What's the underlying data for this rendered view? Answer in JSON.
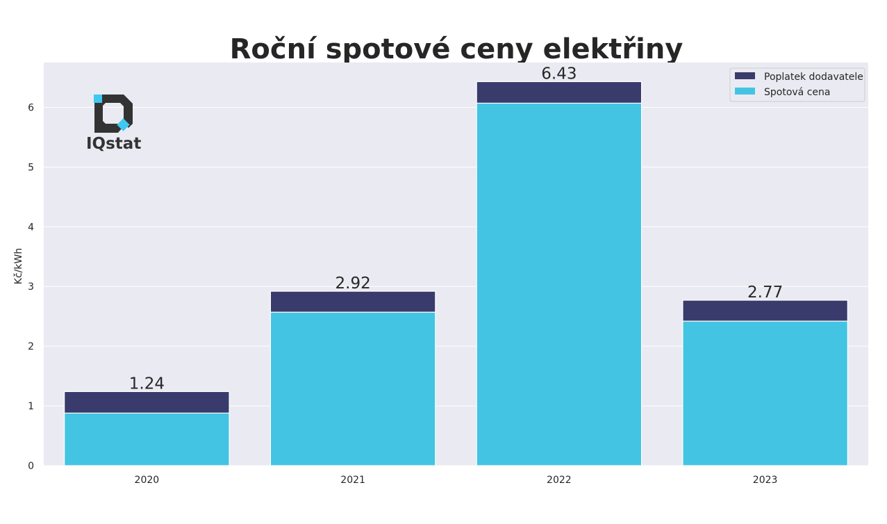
{
  "chart_data": {
    "type": "bar",
    "stacked": true,
    "title": "Roční spotové ceny elektřiny",
    "xlabel": "",
    "ylabel": "Kč/kWh",
    "categories": [
      "2020",
      "2021",
      "2022",
      "2023"
    ],
    "series": [
      {
        "name": "Spotová cena",
        "values": [
          0.88,
          2.57,
          6.07,
          2.42
        ],
        "color": "#44c4e3"
      },
      {
        "name": "Poplatek dodavatele",
        "values": [
          0.36,
          0.35,
          0.36,
          0.35
        ],
        "color": "#383b6b"
      }
    ],
    "totals": [
      1.24,
      2.92,
      6.43,
      2.77
    ],
    "total_labels": [
      "1.24",
      "2.92",
      "6.43",
      "2.77"
    ],
    "ylim": [
      0,
      6.75
    ],
    "yticks": [
      0,
      1,
      2,
      3,
      4,
      5,
      6
    ],
    "grid": true,
    "legend_position": "top-right",
    "legend_order": [
      "Poplatek dodavatele",
      "Spotová cena"
    ]
  },
  "logo": {
    "text": "IQstat",
    "primary_color": "#333333",
    "accent_color": "#3fc8f0"
  },
  "colors": {
    "plot_background": "#eaeaf2",
    "grid": "#ffffff",
    "text": "#262626"
  }
}
